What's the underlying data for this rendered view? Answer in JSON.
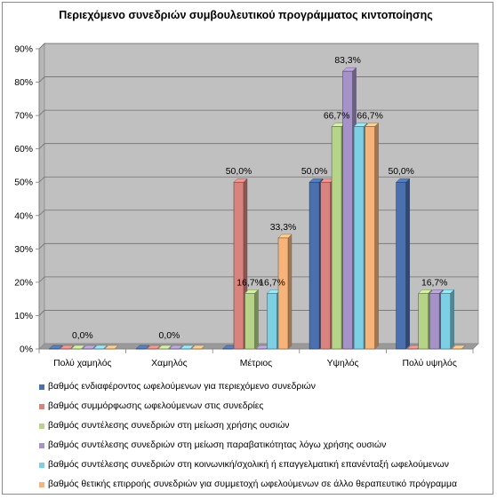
{
  "chart_data": {
    "type": "bar",
    "title": "Περιεχόμενο συνεδριών συμβουλευτικού προγράμματος κιντοποίησης",
    "categories": [
      "Πολύ χαμηλός",
      "Χαμηλός",
      "Μέτριος",
      "Υψηλός",
      "Πολύ υψηλός"
    ],
    "y_ticks": [
      "0%",
      "10%",
      "20%",
      "30%",
      "40%",
      "50%",
      "60%",
      "70%",
      "80%",
      "90%"
    ],
    "ylim": [
      0,
      90
    ],
    "grid": true,
    "legend_position": "bottom",
    "series": [
      {
        "name": "βαθμός ενδιαφέροντος ωφελούμενων για περιεχόμενο συνεδριών",
        "color": "#4a70b0",
        "values": [
          0,
          0,
          0,
          50,
          50
        ]
      },
      {
        "name": "βαθμός συμμόρφωσης ωφελούμενων στις συνεδρίες",
        "color": "#d9837e",
        "values": [
          0,
          0,
          50,
          50,
          0
        ]
      },
      {
        "name": "βαθμός συντέλεσης συνεδριών στη μείωση χρήσης ουσιών",
        "color": "#b6d488",
        "values": [
          0,
          0,
          16.7,
          66.7,
          16.7
        ]
      },
      {
        "name": "βαθμός συντέλεσης συνεδριών στη μείωση παραβατικότητας λόγω χρήσης ουσιών",
        "color": "#a592c8",
        "values": [
          0,
          0,
          0,
          83.3,
          16.7
        ]
      },
      {
        "name": "βαθμός συντέλεσης συνεδριών στη κοινωνική/σχολική ή επαγγελματική επανένταξή ωφελούμενων",
        "color": "#7dcfe3",
        "values": [
          0,
          0,
          16.7,
          66.7,
          16.7
        ]
      },
      {
        "name": "βαθμός θετικής επιρροής συνεδριών για συμμετοχή ωφελούμενων σε άλλο θεραπευτικό πρόγραμμα",
        "color": "#f7b47a",
        "values": [
          0,
          0,
          33.3,
          66.7,
          0
        ]
      }
    ],
    "data_labels": [
      {
        "text": "0,0%",
        "category": 0,
        "value": 0
      },
      {
        "text": "0,0%",
        "category": 1,
        "value": 0
      },
      {
        "text": "50,0%",
        "category": 2,
        "series": 1,
        "value": 50
      },
      {
        "text": "16,7%",
        "category": 2,
        "series": 2,
        "value": 16.7
      },
      {
        "text": "16,7%",
        "category": 2,
        "series": 4,
        "value": 16.7
      },
      {
        "text": "33,3%",
        "category": 2,
        "series": 5,
        "value": 33.3
      },
      {
        "text": "50,0%",
        "category": 3,
        "series": 0,
        "value": 50
      },
      {
        "text": "66,7%",
        "category": 3,
        "series": 2,
        "value": 66.7
      },
      {
        "text": "83,3%",
        "category": 3,
        "series": 3,
        "value": 83.3
      },
      {
        "text": "66,7%",
        "category": 3,
        "series": 5,
        "value": 66.7
      },
      {
        "text": "50,0%",
        "category": 4,
        "series": 0,
        "value": 50
      },
      {
        "text": "16,7%",
        "category": 4,
        "series": 3,
        "value": 16.7
      }
    ]
  }
}
